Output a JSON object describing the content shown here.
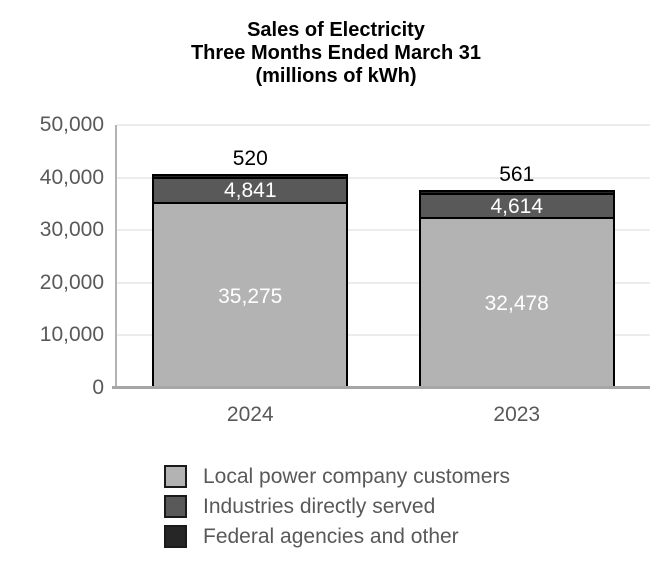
{
  "chart_data": {
    "type": "bar",
    "stacked": true,
    "title": "Sales of Electricity",
    "subtitle": "Three Months Ended March 31",
    "unit_note": "(millions of kWh)",
    "categories": [
      "2024",
      "2023"
    ],
    "series": [
      {
        "name": "Local power company customers",
        "values": [
          35275,
          32478
        ],
        "labels": [
          "35,275",
          "32,478"
        ],
        "color": "#b3b3b3",
        "label_color": "#ffffff",
        "label_position": "inside"
      },
      {
        "name": "Industries directly served",
        "values": [
          4841,
          4614
        ],
        "labels": [
          "4,841",
          "4,614"
        ],
        "color": "#595959",
        "label_color": "#ffffff",
        "label_position": "inside"
      },
      {
        "name": "Federal agencies and other",
        "values": [
          520,
          561
        ],
        "labels": [
          "520",
          "561"
        ],
        "color": "#262626",
        "label_color": "#000000",
        "label_position": "above"
      }
    ],
    "ylim": [
      0,
      50000
    ],
    "ytick_interval": 10000,
    "yticks": [
      {
        "value": 50000,
        "label": "50,000"
      },
      {
        "value": 40000,
        "label": "40,000"
      },
      {
        "value": 30000,
        "label": "30,000"
      },
      {
        "value": 20000,
        "label": "20,000"
      },
      {
        "value": 10000,
        "label": "10,000"
      },
      {
        "value": 0,
        "label": "0"
      }
    ],
    "grid": true,
    "legend_position": "bottom",
    "palette": {
      "axis_text": "#595959",
      "gridline": "#ececec",
      "axis_line": "#a6a6a6",
      "bar_border": "#000000",
      "title_text": "#000000"
    }
  }
}
